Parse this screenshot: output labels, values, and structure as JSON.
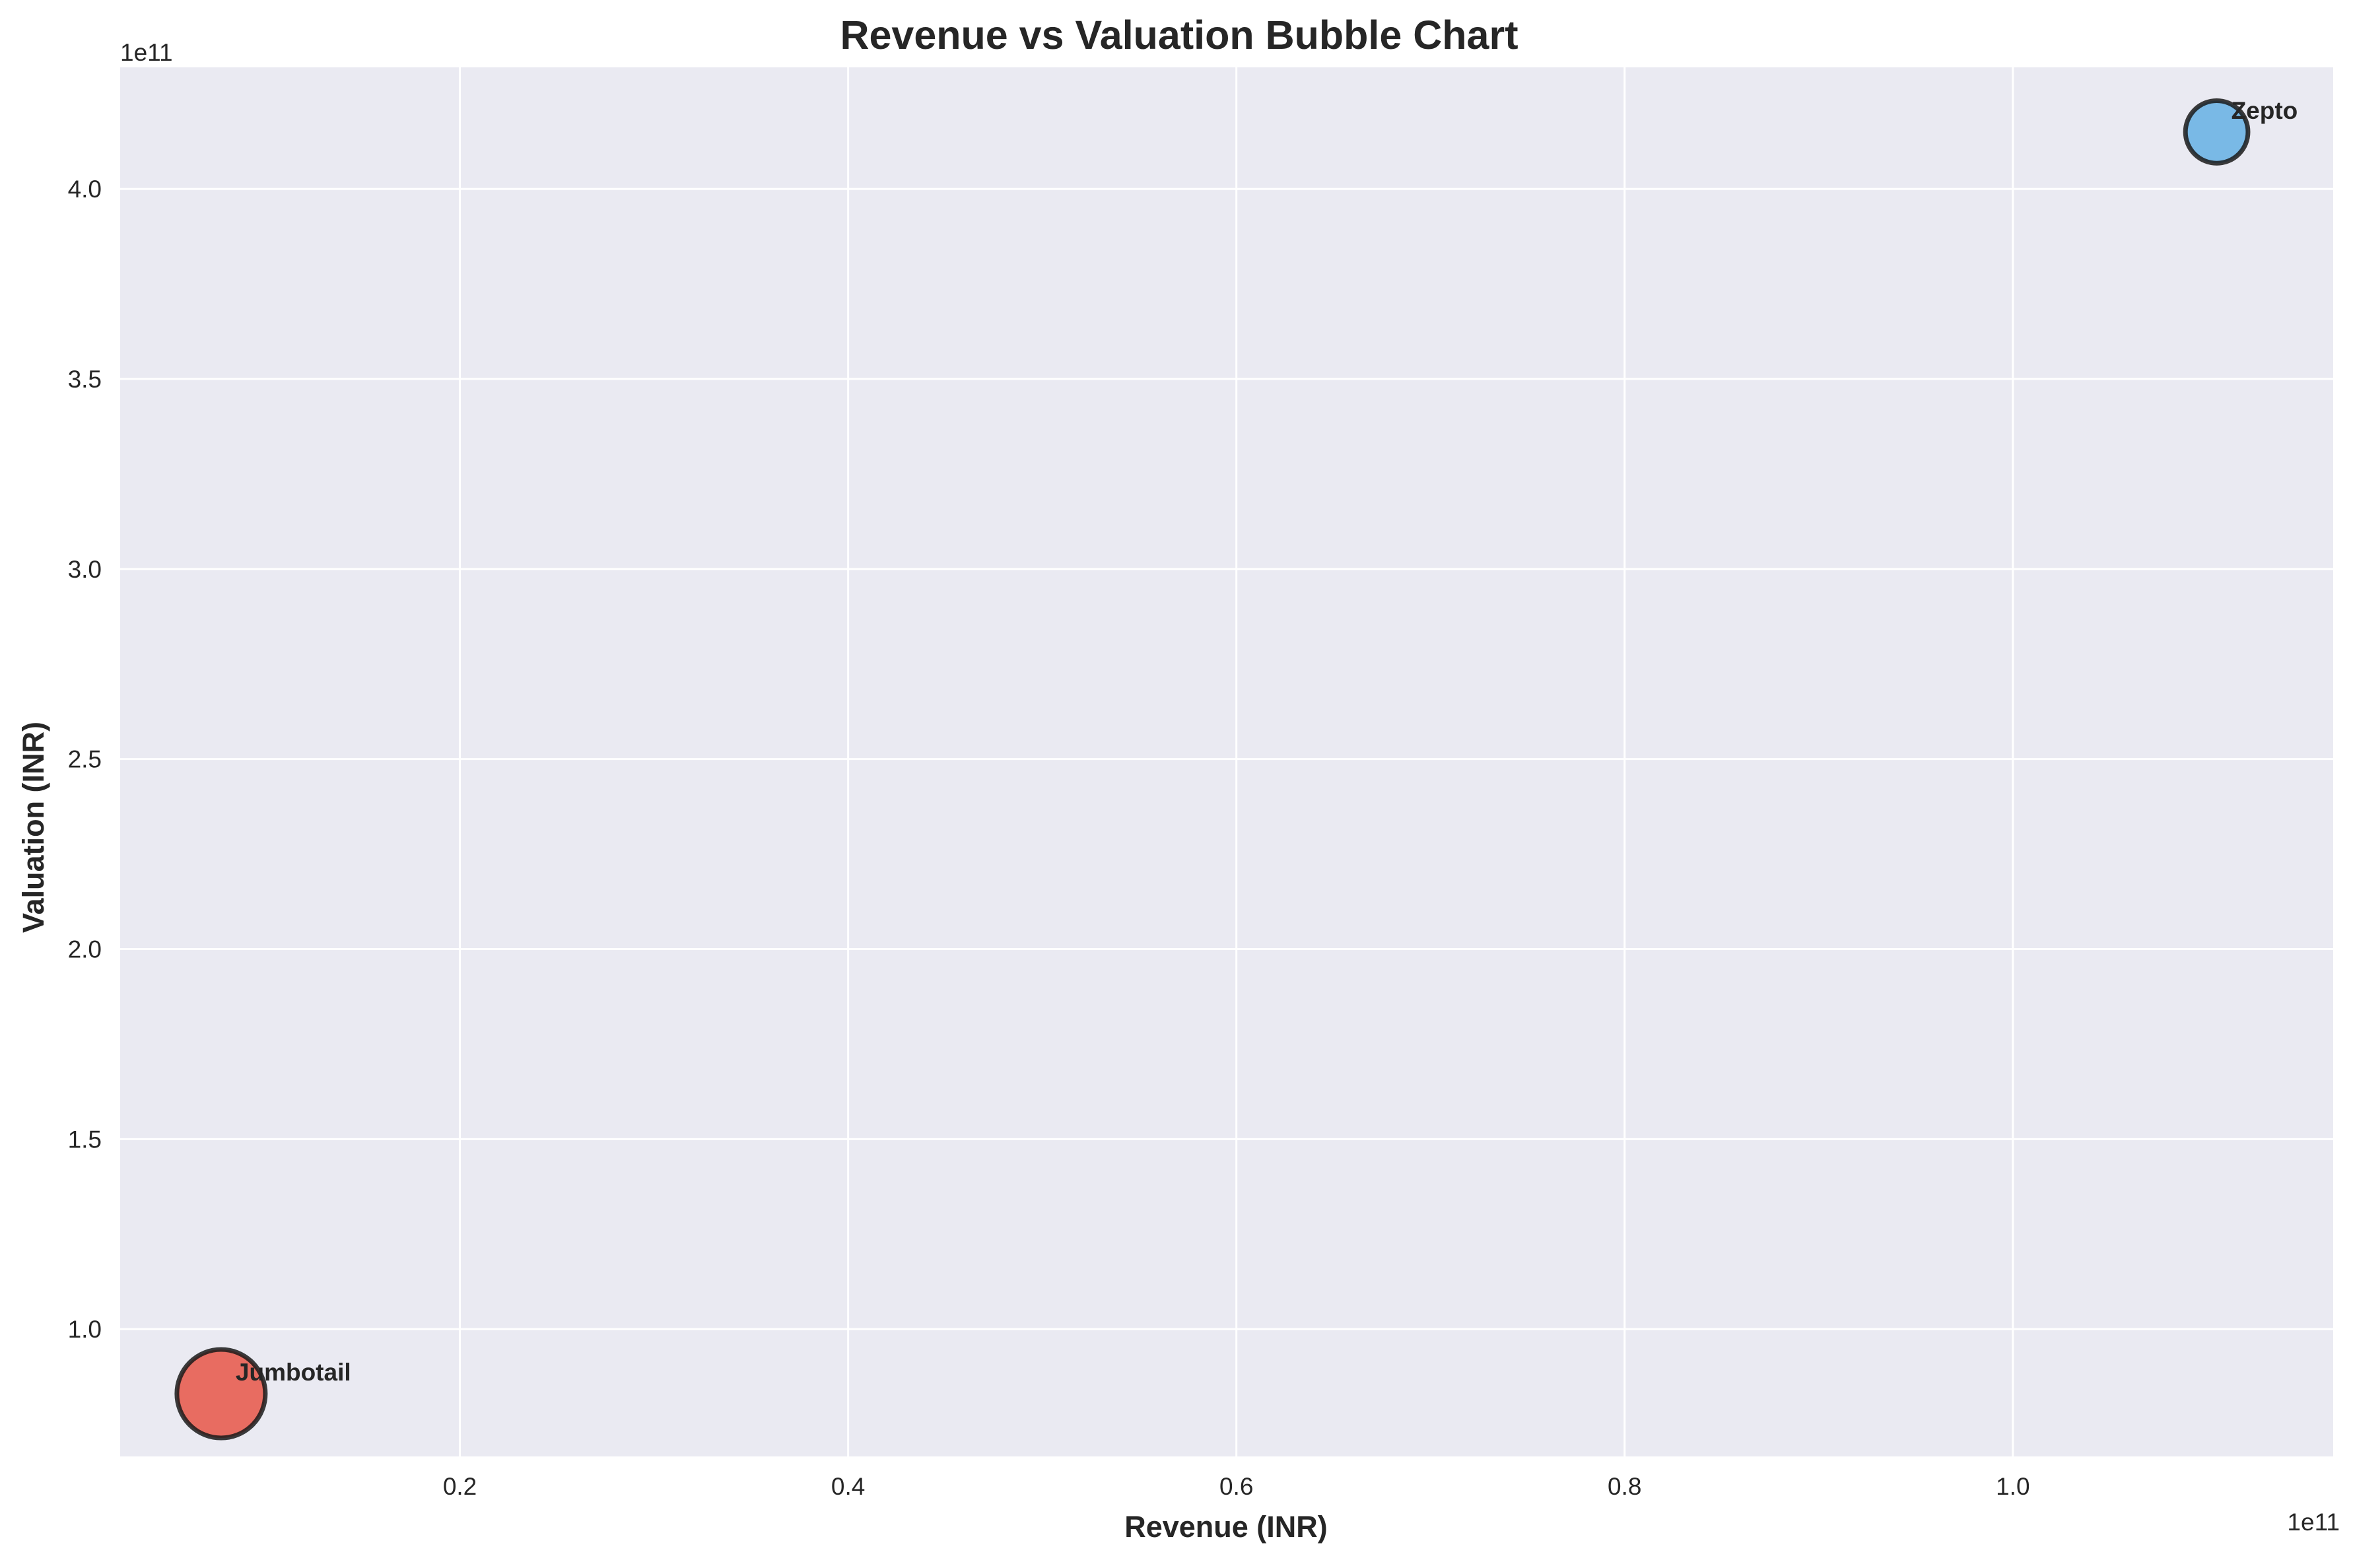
{
  "chart_data": {
    "type": "scatter",
    "title": "Revenue vs Valuation Bubble Chart",
    "xlabel": "Revenue (INR)",
    "ylabel": "Valuation (INR)",
    "x_offset_text": "1e11",
    "y_offset_text": "1e11",
    "xlim": [
      0.025,
      1.165
    ],
    "ylim": [
      0.665,
      4.32
    ],
    "x_ticks": [
      {
        "value": 0.2,
        "label": "0.2"
      },
      {
        "value": 0.4,
        "label": "0.4"
      },
      {
        "value": 0.6,
        "label": "0.6"
      },
      {
        "value": 0.8,
        "label": "0.8"
      },
      {
        "value": 1.0,
        "label": "1.0"
      }
    ],
    "y_ticks": [
      {
        "value": 1.0,
        "label": "1.0"
      },
      {
        "value": 1.5,
        "label": "1.5"
      },
      {
        "value": 2.0,
        "label": "2.0"
      },
      {
        "value": 2.5,
        "label": "2.5"
      },
      {
        "value": 3.0,
        "label": "3.0"
      },
      {
        "value": 3.5,
        "label": "3.5"
      },
      {
        "value": 4.0,
        "label": "4.0"
      }
    ],
    "grid": true,
    "points": [
      {
        "label": "Jumbotail",
        "x": 0.077,
        "y": 0.83,
        "size": 2,
        "color": "#e74c3c"
      },
      {
        "label": "Zepto",
        "x": 1.105,
        "y": 4.15,
        "size": 1,
        "color": "#5dade2"
      }
    ],
    "colors": {
      "plot_background": "#eaeaf2",
      "grid": "#ffffff",
      "text": "#262626",
      "marker_edge": "#1a1a1a"
    }
  }
}
